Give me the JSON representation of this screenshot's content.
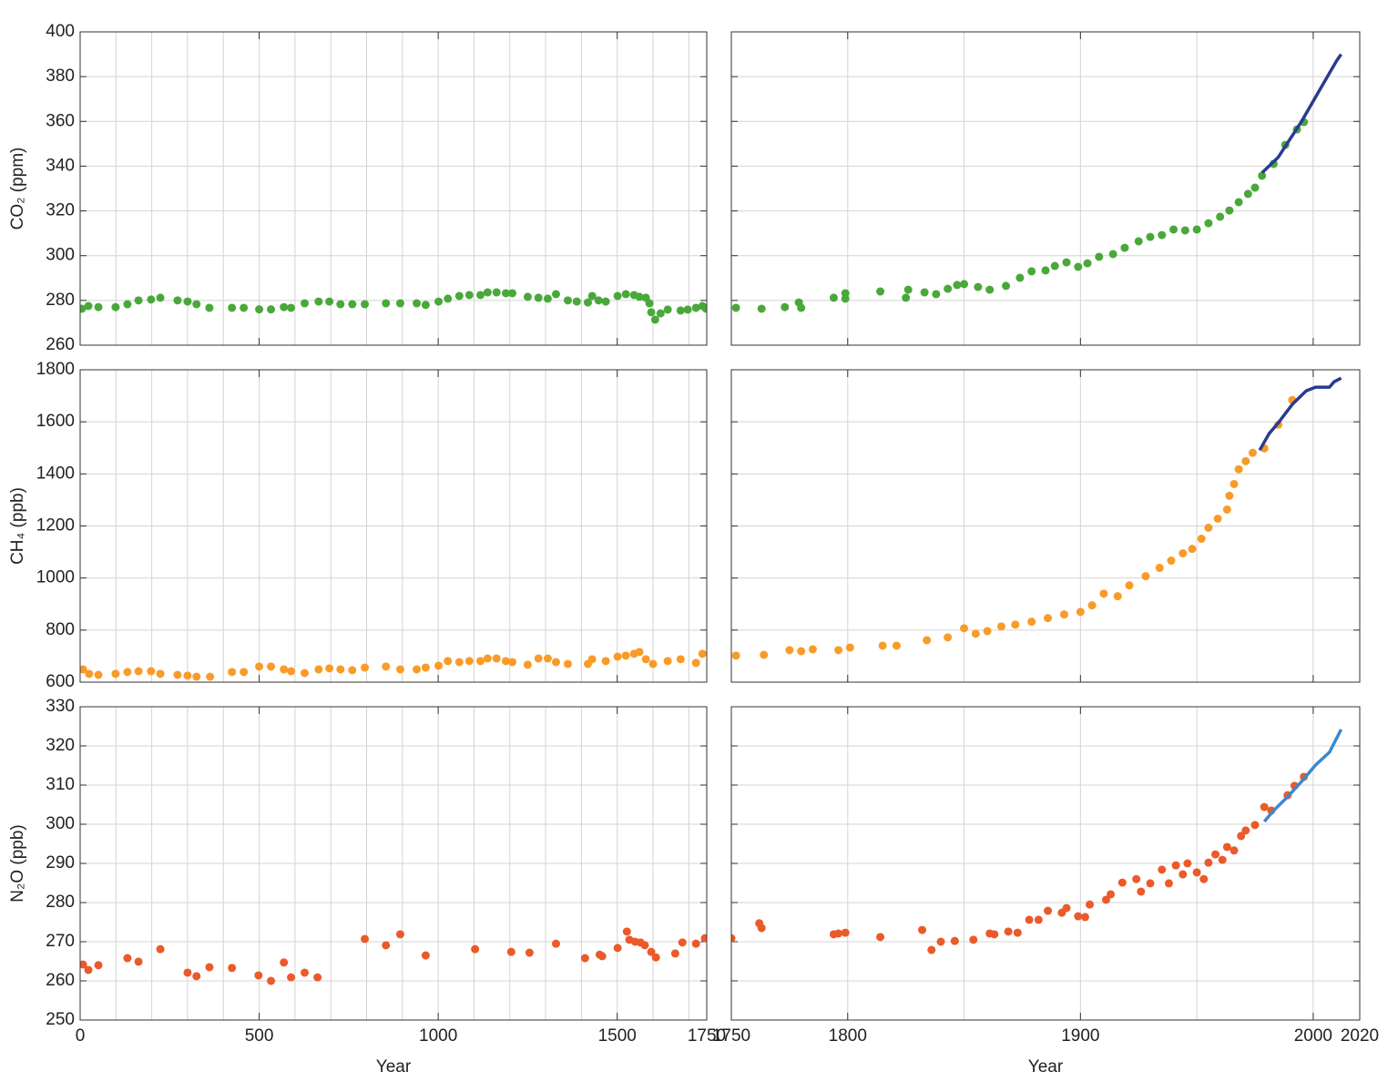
{
  "chart_data": [
    {
      "type": "scatter",
      "ylabel": "CO₂ (ppm)",
      "xlim": [
        0,
        1750
      ],
      "ylim": [
        260,
        400
      ],
      "xticks": [
        0,
        500,
        1000,
        1500,
        1750
      ],
      "xtick_labels": false,
      "ytick_labels": true,
      "xgrid": [
        100,
        200,
        300,
        400,
        500,
        600,
        700,
        800,
        900,
        1000,
        1100,
        1200,
        1300,
        1400,
        1500,
        1600,
        1700
      ],
      "yticks": [
        260,
        280,
        300,
        320,
        340,
        360,
        380,
        400
      ],
      "grid": true,
      "series": [
        {
          "mode": "markers",
          "color": "#4aa83a",
          "x": [
            5,
            23,
            51,
            99,
            132,
            163,
            198,
            224,
            272,
            300,
            325,
            361,
            424,
            457,
            500,
            533,
            569,
            589,
            627,
            666,
            696,
            727,
            760,
            795,
            854,
            894,
            940,
            965,
            1001,
            1027,
            1059,
            1087,
            1118,
            1138,
            1163,
            1189,
            1207,
            1250,
            1280,
            1306,
            1329,
            1362,
            1387,
            1418,
            1430,
            1448,
            1468,
            1501,
            1524,
            1547,
            1562,
            1580,
            1590,
            1595,
            1606,
            1621,
            1641,
            1677,
            1697,
            1720,
            1738,
            1748
          ],
          "values": [
            276.3,
            277.5,
            277,
            277,
            278.3,
            280,
            280.4,
            281.2,
            280,
            279.5,
            278.3,
            276.7,
            276.7,
            276.7,
            276,
            276,
            277,
            276.7,
            278.7,
            279.5,
            279.5,
            278.3,
            278.3,
            278.3,
            278.7,
            278.7,
            278.7,
            278,
            279.5,
            280.8,
            282,
            282.4,
            282.4,
            283.6,
            283.6,
            283.2,
            283.2,
            281.6,
            281.2,
            280.8,
            282.8,
            280,
            279.5,
            279.1,
            282,
            280,
            279.5,
            282,
            282.8,
            282.4,
            281.6,
            281.2,
            278.7,
            274.7,
            271.4,
            274.2,
            275.9,
            275.5,
            275.9,
            276.7,
            277.5,
            276.3
          ]
        }
      ]
    },
    {
      "type": "scatter",
      "xlim": [
        1750,
        2020
      ],
      "ylim": [
        260,
        400
      ],
      "xticks": [
        1800,
        1900,
        2000,
        2020
      ],
      "xtick_labels": false,
      "ytick_labels": false,
      "xgrid": [
        1800,
        1850,
        1900,
        1950,
        2000
      ],
      "yticks": [
        260,
        280,
        300,
        320,
        340,
        360,
        380,
        400
      ],
      "grid": true,
      "series": [
        {
          "mode": "markers",
          "color": "#4aa83a",
          "x": [
            1752,
            1763,
            1773,
            1779,
            1780,
            1794,
            1799,
            1799,
            1814,
            1825,
            1826,
            1833,
            1838,
            1843,
            1847,
            1850,
            1856,
            1861,
            1868,
            1874,
            1879,
            1885,
            1889,
            1894,
            1899,
            1903,
            1908,
            1914,
            1919,
            1925,
            1930,
            1935,
            1940,
            1945,
            1950,
            1955,
            1960,
            1964,
            1968,
            1972,
            1975,
            1978,
            1983,
            1988,
            1993,
            1996
          ],
          "values": [
            276.7,
            276.3,
            277,
            279.1,
            276.7,
            281.2,
            283.2,
            280.8,
            284,
            281.2,
            284.8,
            283.6,
            282.8,
            285.2,
            286.9,
            287.3,
            286,
            284.8,
            286.5,
            290.1,
            293,
            293.4,
            295.4,
            297,
            295,
            296.6,
            299.5,
            300.7,
            303.5,
            306.4,
            308.4,
            309.2,
            311.7,
            311.3,
            311.7,
            314.5,
            317.4,
            320.2,
            323.9,
            327.6,
            330.4,
            335.7,
            341,
            349.5,
            356.4,
            359.7
          ]
        },
        {
          "mode": "line",
          "color": "#2b3a8f",
          "x": [
            1978,
            1985,
            1990,
            1995,
            2000,
            2005,
            2010,
            2012
          ],
          "values": [
            337,
            344,
            352,
            360,
            369,
            378,
            387,
            390
          ]
        }
      ]
    },
    {
      "type": "scatter",
      "ylabel": "CH₄ (ppb)",
      "xlim": [
        0,
        1750
      ],
      "ylim": [
        600,
        1800
      ],
      "xticks": [
        0,
        500,
        1000,
        1500,
        1750
      ],
      "xtick_labels": false,
      "ytick_labels": true,
      "xgrid": [
        100,
        200,
        300,
        400,
        500,
        600,
        700,
        800,
        900,
        1000,
        1100,
        1200,
        1300,
        1400,
        1500,
        1600,
        1700
      ],
      "yticks": [
        600,
        800,
        1000,
        1200,
        1400,
        1600,
        1800
      ],
      "grid": true,
      "series": [
        {
          "mode": "markers",
          "color": "#f99b29",
          "x": [
            8,
            25,
            51,
            99,
            132,
            163,
            198,
            224,
            272,
            300,
            325,
            363,
            424,
            457,
            500,
            533,
            569,
            589,
            627,
            666,
            696,
            727,
            760,
            795,
            854,
            894,
            940,
            965,
            1001,
            1027,
            1059,
            1087,
            1118,
            1138,
            1163,
            1189,
            1207,
            1250,
            1280,
            1306,
            1329,
            1362,
            1418,
            1430,
            1468,
            1501,
            1524,
            1547,
            1562,
            1580,
            1600,
            1641,
            1677,
            1720,
            1738
          ],
          "values": [
            649,
            632,
            628,
            632,
            639,
            642,
            642,
            632,
            628,
            625,
            621,
            621,
            639,
            639,
            660,
            660,
            649,
            642,
            635,
            649,
            653,
            649,
            646,
            656,
            660,
            649,
            649,
            656,
            663,
            681,
            677,
            681,
            681,
            691,
            691,
            681,
            677,
            667,
            691,
            691,
            677,
            670,
            670,
            688,
            681,
            698,
            702,
            709,
            716,
            688,
            670,
            681,
            688,
            674,
            709
          ]
        }
      ]
    },
    {
      "type": "scatter",
      "xlim": [
        1750,
        2020
      ],
      "ylim": [
        600,
        1800
      ],
      "xticks": [
        1800,
        1900,
        2000,
        2020
      ],
      "xtick_labels": false,
      "ytick_labels": false,
      "xgrid": [
        1800,
        1850,
        1900,
        1950,
        2000
      ],
      "yticks": [
        600,
        800,
        1000,
        1200,
        1400,
        1600,
        1800
      ],
      "grid": true,
      "series": [
        {
          "mode": "markers",
          "color": "#f99b29",
          "x": [
            1752,
            1764,
            1775,
            1780,
            1785,
            1796,
            1801,
            1815,
            1821,
            1834,
            1843,
            1850,
            1855,
            1860,
            1866,
            1872,
            1879,
            1886,
            1893,
            1900,
            1905,
            1910,
            1916,
            1921,
            1928,
            1934,
            1939,
            1944,
            1948,
            1952,
            1955,
            1959,
            1963,
            1964,
            1966,
            1968,
            1971,
            1974,
            1979,
            1985,
            1991
          ],
          "values": [
            702,
            705,
            723,
            719,
            726,
            723,
            733,
            740,
            740,
            761,
            772,
            807,
            786,
            796,
            814,
            821,
            832,
            846,
            860,
            870,
            895,
            940,
            930,
            972,
            1007,
            1039,
            1067,
            1095,
            1112,
            1151,
            1193,
            1228,
            1263,
            1316,
            1361,
            1418,
            1449,
            1481,
            1498,
            1589,
            1684
          ]
        },
        {
          "mode": "line",
          "color": "#2b3a8f",
          "x": [
            1977,
            1981,
            1985,
            1991,
            1997,
            2001,
            2007,
            2009,
            2012
          ],
          "values": [
            1491,
            1554,
            1596,
            1667,
            1719,
            1733,
            1733,
            1754,
            1768
          ]
        }
      ]
    },
    {
      "type": "scatter",
      "ylabel": "N₂O (ppb)",
      "xlabel": "Year",
      "xlim": [
        0,
        1750
      ],
      "ylim": [
        250,
        330
      ],
      "xticks": [
        0,
        500,
        1000,
        1500,
        1750
      ],
      "xtick_labels": true,
      "ytick_labels": true,
      "xgrid": [
        100,
        200,
        300,
        400,
        500,
        600,
        700,
        800,
        900,
        1000,
        1100,
        1200,
        1300,
        1400,
        1500,
        1600,
        1700
      ],
      "yticks": [
        250,
        260,
        270,
        280,
        290,
        300,
        310,
        320,
        330
      ],
      "grid": true,
      "series": [
        {
          "mode": "markers",
          "color": "#eb5a2a",
          "x": [
            8,
            23,
            51,
            132,
            163,
            224,
            300,
            325,
            361,
            424,
            498,
            533,
            569,
            589,
            627,
            663,
            795,
            854,
            894,
            965,
            1103,
            1204,
            1255,
            1329,
            1410,
            1451,
            1458,
            1501,
            1527,
            1534,
            1550,
            1565,
            1577,
            1595,
            1608,
            1662,
            1682,
            1720,
            1745
          ],
          "values": [
            264.2,
            262.8,
            264,
            265.8,
            264.9,
            268.1,
            262.1,
            261.2,
            263.5,
            263.3,
            261.4,
            260,
            264.7,
            260.9,
            262.1,
            260.9,
            270.7,
            269.1,
            271.9,
            266.5,
            268.1,
            267.4,
            267.2,
            269.5,
            265.8,
            266.7,
            266.3,
            268.4,
            272.6,
            270.5,
            270,
            269.8,
            269.1,
            267.4,
            266,
            267,
            269.8,
            269.5,
            270.9
          ]
        }
      ]
    },
    {
      "type": "scatter",
      "xlabel": "Year",
      "xlim": [
        1750,
        2020
      ],
      "ylim": [
        250,
        330
      ],
      "xticks": [
        1750,
        1800,
        1900,
        2000,
        2020
      ],
      "xtick_labels": true,
      "ytick_labels": false,
      "xgrid": [
        1800,
        1850,
        1900,
        1950,
        2000
      ],
      "yticks": [
        250,
        260,
        270,
        280,
        290,
        300,
        310,
        320,
        330
      ],
      "grid": true,
      "series": [
        {
          "mode": "markers",
          "color": "#eb5a2a",
          "x": [
            1750,
            1762,
            1763,
            1794,
            1796,
            1799,
            1814,
            1832,
            1836,
            1840,
            1846,
            1854,
            1861,
            1863,
            1869,
            1873,
            1878,
            1882,
            1886,
            1892,
            1894,
            1899,
            1902,
            1904,
            1911,
            1913,
            1918,
            1924,
            1926,
            1930,
            1935,
            1938,
            1941,
            1944,
            1946,
            1950,
            1953,
            1955,
            1958,
            1961,
            1963,
            1966,
            1969,
            1971,
            1975,
            1979,
            1982,
            1989,
            1992,
            1996
          ],
          "values": [
            270.9,
            274.7,
            273.5,
            271.9,
            272.1,
            272.3,
            271.2,
            273,
            267.9,
            270,
            270.2,
            270.5,
            272.1,
            271.9,
            272.6,
            272.3,
            275.6,
            275.6,
            277.9,
            277.4,
            278.6,
            276.5,
            276.3,
            279.5,
            280.7,
            282.1,
            285.1,
            286,
            282.8,
            284.9,
            288.4,
            284.9,
            289.5,
            287.2,
            290,
            287.7,
            286,
            290.2,
            292.3,
            290.9,
            294.2,
            293.3,
            297,
            298.4,
            299.8,
            304.4,
            303.5,
            307.4,
            309.8,
            312.1
          ]
        },
        {
          "mode": "line",
          "color": "#3c88cf",
          "x": [
            1979,
            1983,
            1989,
            1995,
            2001,
            2007,
            2012
          ],
          "values": [
            300.7,
            303.5,
            307,
            310.9,
            315.1,
            318.4,
            324.2
          ]
        }
      ]
    }
  ]
}
